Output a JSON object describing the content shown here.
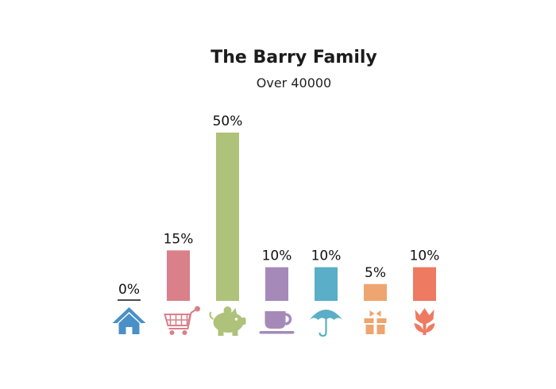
{
  "chart_data": {
    "type": "bar",
    "title": "The Barry Family",
    "subtitle": "Over 40000",
    "categories": [
      "",
      "",
      "",
      "",
      "",
      "",
      ""
    ],
    "icons": [
      "house-icon",
      "shopping-cart-icon",
      "piggy-bank-icon",
      "coffee-cup-icon",
      "umbrella-icon",
      "gift-box-icon",
      "tulip-icon"
    ],
    "values": [
      0,
      15,
      50,
      10,
      10,
      5,
      10
    ],
    "value_labels": [
      "0%",
      "15%",
      "50%",
      "10%",
      "10%",
      "5%",
      "10%"
    ],
    "colors": [
      "#4a90c8",
      "#d9808a",
      "#aec279",
      "#a58ab9",
      "#5aaec8",
      "#eea56f",
      "#ee7a61"
    ],
    "ylim": [
      0,
      50
    ],
    "grid": false,
    "legend": "none"
  }
}
